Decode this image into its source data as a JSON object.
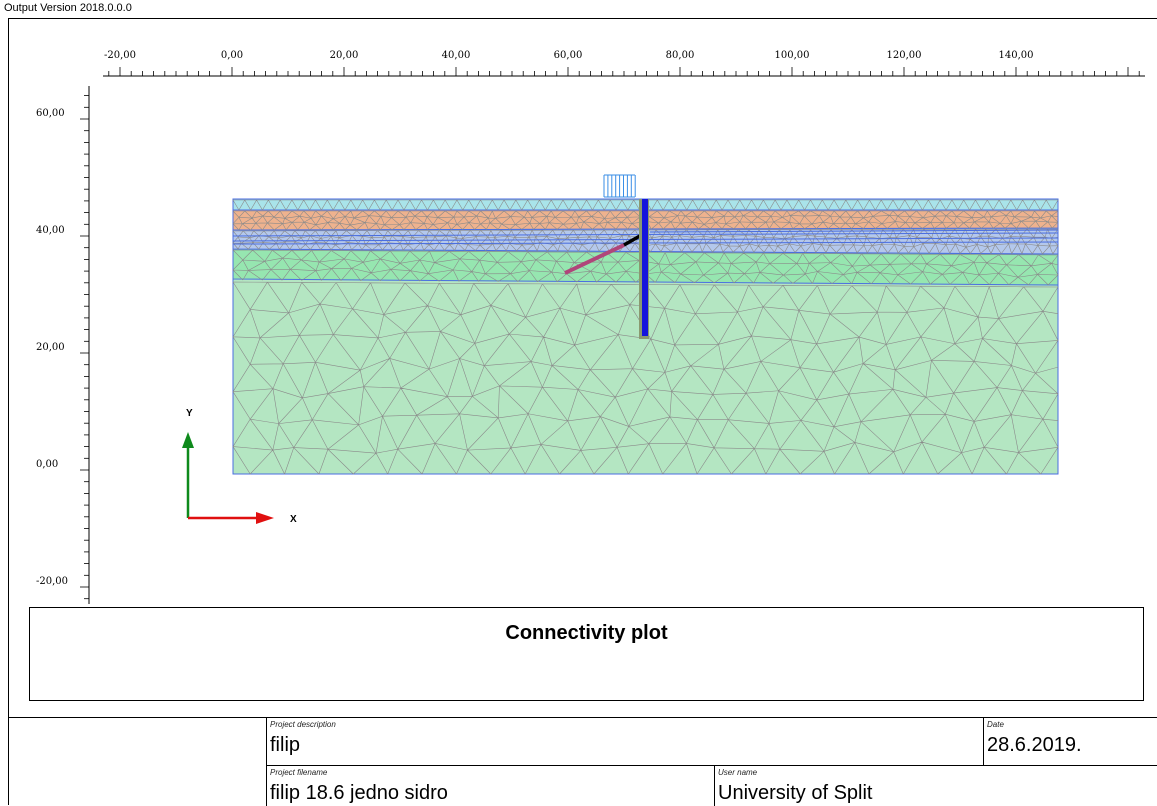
{
  "header": {
    "version_text": "Output Version 2018.0.0.0"
  },
  "plot": {
    "x_ticks": [
      "-20,00",
      "0,00",
      "20,00",
      "40,00",
      "60,00",
      "80,00",
      "100,00",
      "120,00",
      "140,00"
    ],
    "y_ticks": [
      "60,00",
      "40,00",
      "20,00",
      "0,00",
      "-20,00"
    ],
    "axis_x_label": "X",
    "axis_y_label": "Y",
    "colors": {
      "top_layer": "#a9e4ea",
      "orange_layer": "#eeb28e",
      "blue_thin_layer": "#b4c8ec",
      "green_layer": "#96e6b0",
      "base_layer": "#b4e6c2",
      "wall": "#1414dc",
      "anchor_free": "#000000",
      "anchor_grout": "#b0457a",
      "load": "#3a8ee6",
      "axis_x": "#e01010",
      "axis_y": "#0e8a1c"
    }
  },
  "title_box": {
    "title": "Connectivity plot"
  },
  "info": {
    "project_description_label": "Project description",
    "project_description": "filip",
    "date_label": "Date",
    "date": "28.6.2019.",
    "project_filename_label": "Project filename",
    "project_filename": "filip 18.6 jedno sidro",
    "user_name_label": "User name",
    "user_name": "University of Split"
  }
}
